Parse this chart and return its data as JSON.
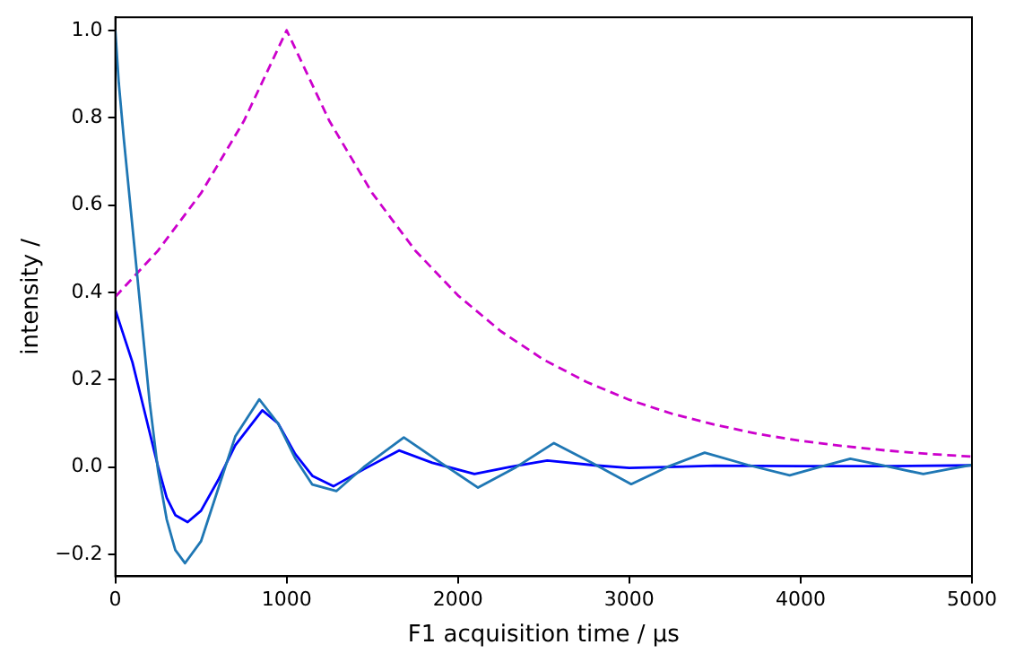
{
  "chart_data": {
    "type": "line",
    "xlabel": "F1 acquisition time / µs",
    "ylabel": "intensity /",
    "xlim": [
      0,
      5000
    ],
    "xticks": [
      0,
      1000,
      2000,
      3000,
      4000,
      5000
    ],
    "ylim": [
      -0.25,
      1.03
    ],
    "yticks": [
      {
        "value": -0.2,
        "label": "−0.2"
      },
      {
        "value": 0,
        "label": "0.0"
      },
      0.2,
      0.4,
      0.6,
      0.8,
      {
        "value": 1,
        "label": "1.0"
      }
    ],
    "grid": false,
    "legend": false,
    "marker": "none",
    "series": [
      {
        "color": "#1f77b4",
        "line_style": "solid",
        "x": [
          0,
          20,
          50,
          100,
          150,
          200,
          250,
          300,
          350,
          407,
          500,
          600,
          700,
          840,
          950,
          1050,
          1150,
          1290,
          1450,
          1684,
          1900,
          2117,
          2340,
          2560,
          2780,
          3011,
          3220,
          3440,
          3690,
          3936,
          4110,
          4290,
          4500,
          4716,
          4860,
          5000
        ],
        "values": [
          1.0,
          0.88,
          0.75,
          0.55,
          0.35,
          0.15,
          -0.01,
          -0.12,
          -0.19,
          -0.22,
          -0.17,
          -0.05,
          0.07,
          0.155,
          0.1,
          0.02,
          -0.04,
          -0.055,
          0.0,
          0.068,
          0.01,
          -0.047,
          0.0,
          0.055,
          0.01,
          -0.039,
          0.0,
          0.033,
          0.005,
          -0.019,
          0.0,
          0.019,
          0.002,
          -0.016,
          -0.005,
          0.005
        ]
      },
      {
        "color": "#0000ff",
        "line_style": "solid",
        "x": [
          0,
          50,
          100,
          150,
          200,
          250,
          300,
          350,
          422,
          500,
          600,
          700,
          858,
          950,
          1050,
          1150,
          1273,
          1450,
          1656,
          1850,
          2096,
          2300,
          2521,
          2800,
          3000,
          3500,
          4000,
          4500,
          5000
        ],
        "values": [
          0.36,
          0.3,
          0.24,
          0.16,
          0.08,
          0.0,
          -0.07,
          -0.11,
          -0.126,
          -0.1,
          -0.03,
          0.05,
          0.13,
          0.1,
          0.03,
          -0.02,
          -0.044,
          -0.005,
          0.038,
          0.01,
          -0.016,
          0.0,
          0.015,
          0.004,
          -0.002,
          0.003,
          0.002,
          0.002,
          0.004
        ]
      },
      {
        "color": "#cc00cc",
        "line_style": "dashed",
        "x": [
          0,
          250,
          500,
          750,
          1000,
          1250,
          1500,
          1750,
          2000,
          2250,
          2500,
          2750,
          3000,
          3250,
          3500,
          3750,
          4000,
          4250,
          4500,
          4750,
          5000
        ],
        "values": [
          0.39,
          0.496,
          0.627,
          0.792,
          1.0,
          0.792,
          0.627,
          0.496,
          0.393,
          0.311,
          0.246,
          0.195,
          0.154,
          0.122,
          0.097,
          0.076,
          0.06,
          0.048,
          0.038,
          0.03,
          0.024
        ]
      }
    ]
  }
}
